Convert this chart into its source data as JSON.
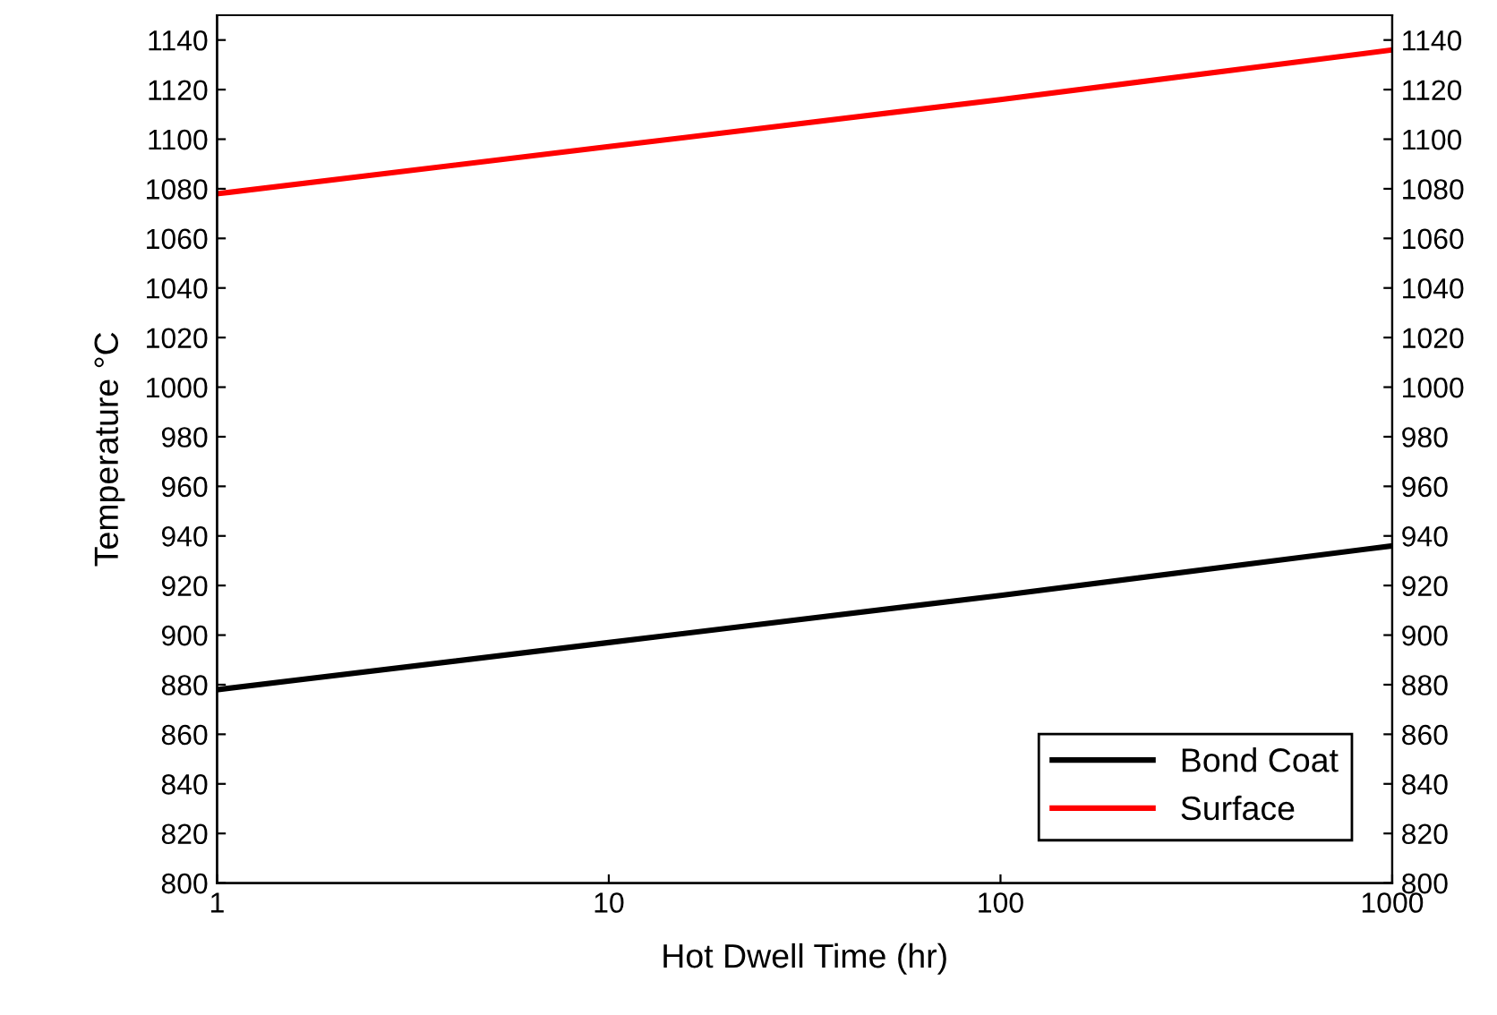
{
  "chart_data": {
    "type": "line",
    "xlabel": "Hot Dwell Time (hr)",
    "ylabel": "Temperature °C",
    "x": [
      1,
      10,
      100,
      1000
    ],
    "series": [
      {
        "name": "Bond Coat",
        "color": "#000000",
        "values": [
          878,
          897,
          916,
          936
        ]
      },
      {
        "name": "Surface",
        "color": "#ff0000",
        "values": [
          1078,
          1097,
          1116,
          1136
        ]
      }
    ],
    "log": "x",
    "xlim": [
      1,
      1000
    ],
    "xticks": [
      1,
      10,
      100,
      1000
    ],
    "ylim": [
      800,
      1150
    ],
    "yticks": [
      800,
      820,
      840,
      860,
      880,
      900,
      920,
      940,
      960,
      980,
      1000,
      1020,
      1040,
      1060,
      1080,
      1100,
      1120,
      1140
    ],
    "y2lim": [
      800,
      1150
    ],
    "y2ticks": [
      800,
      820,
      840,
      860,
      880,
      900,
      920,
      940,
      960,
      980,
      1000,
      1020,
      1040,
      1060,
      1080,
      1100,
      1120,
      1140
    ],
    "grid": false,
    "legend": "bottom right",
    "marker": "none",
    "line_style": "solid"
  }
}
